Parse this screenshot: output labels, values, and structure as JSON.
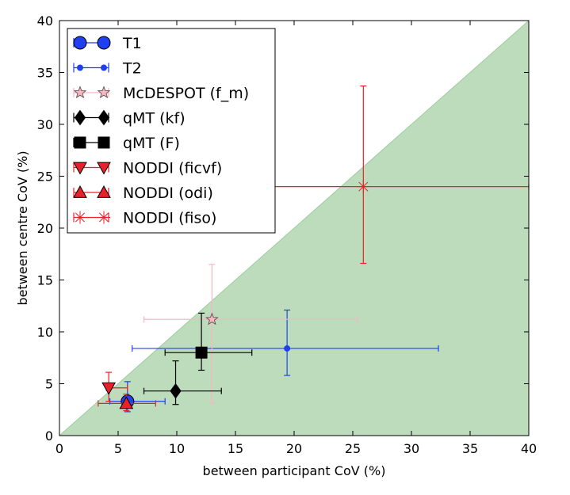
{
  "chart_data": {
    "type": "scatter",
    "title": "",
    "xlabel": "between participant CoV (%)",
    "ylabel": "between centre CoV (%)",
    "xlim": [
      0,
      40
    ],
    "ylim": [
      0,
      40
    ],
    "xticks": [
      0,
      5,
      10,
      15,
      20,
      25,
      30,
      35,
      40
    ],
    "yticks": [
      0,
      5,
      10,
      15,
      20,
      25,
      30,
      35,
      40
    ],
    "grid": false,
    "legend_position": "top-left",
    "shaded_region": {
      "description": "below identity line y = x",
      "color": "#bcdcbc"
    },
    "series": [
      {
        "name": "T1",
        "marker": "circle-large",
        "color": "#1f3ff0",
        "x": 5.8,
        "y": 3.3,
        "xerr": [
          1.5,
          3.2
        ],
        "yerr": [
          1.0,
          1.9
        ]
      },
      {
        "name": "T2",
        "marker": "circle-small",
        "color": "#2040f0",
        "x": 19.4,
        "y": 8.4,
        "xerr": [
          13.2,
          12.9
        ],
        "yerr": [
          2.6,
          3.7
        ]
      },
      {
        "name": "McDESPOT (f_m)",
        "marker": "star",
        "color": "#f4b8c0",
        "x": 13.0,
        "y": 11.2,
        "xerr": [
          5.8,
          12.4
        ],
        "yerr": [
          8.1,
          5.3
        ]
      },
      {
        "name": "qMT (kf)",
        "marker": "diamond",
        "color": "#000000",
        "x": 9.9,
        "y": 4.3,
        "xerr": [
          2.7,
          3.9
        ],
        "yerr": [
          1.3,
          2.9
        ]
      },
      {
        "name": "qMT (F)",
        "marker": "square",
        "color": "#000000",
        "x": 12.1,
        "y": 8.0,
        "xerr": [
          3.1,
          4.3
        ],
        "yerr": [
          1.7,
          3.8
        ]
      },
      {
        "name": "NODDI (ficvf)",
        "marker": "triangle-down",
        "color": "#e8202a",
        "x": 4.2,
        "y": 4.6,
        "xerr": [
          0.2,
          1.6
        ],
        "yerr": [
          1.3,
          1.5
        ]
      },
      {
        "name": "NODDI (odi)",
        "marker": "triangle-up",
        "color": "#e8202a",
        "x": 5.7,
        "y": 3.1,
        "xerr": [
          2.4,
          2.5
        ],
        "yerr": [
          0.7,
          0.9
        ]
      },
      {
        "name": "NODDI (fiso)",
        "marker": "star-x",
        "color": "#e8202a",
        "x": 25.9,
        "y": 24.0,
        "xerr": [
          12.9,
          14.1
        ],
        "yerr": [
          7.4,
          9.7
        ]
      }
    ]
  }
}
